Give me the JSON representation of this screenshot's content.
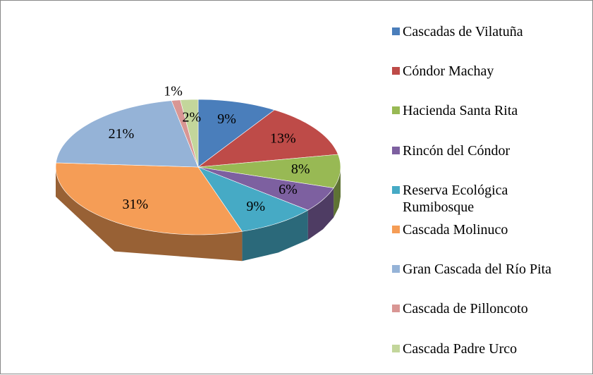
{
  "chart_data": {
    "type": "pie3d",
    "categories": [
      "Cascadas de Vilatuña",
      "Cóndor Machay",
      "Hacienda Santa Rita",
      "Rincón del Cóndor",
      "Reserva Ecológica Rumibosque",
      "Cascada Molinuco",
      "Gran Cascada del Río Pita",
      "Cascada de Pilloncoto",
      "Cascada Padre Urco"
    ],
    "values": [
      9,
      13,
      8,
      6,
      9,
      31,
      21,
      1,
      2
    ],
    "value_labels": [
      "9%",
      "13%",
      "8%",
      "6%",
      "9%",
      "31%",
      "21%",
      "1%",
      "2%"
    ],
    "colors": [
      "#4a7ebb",
      "#be4b48",
      "#98b954",
      "#7d60a0",
      "#46aac5",
      "#f59d56",
      "#95b3d7",
      "#d99694",
      "#c3d69b"
    ],
    "legend": "right"
  }
}
